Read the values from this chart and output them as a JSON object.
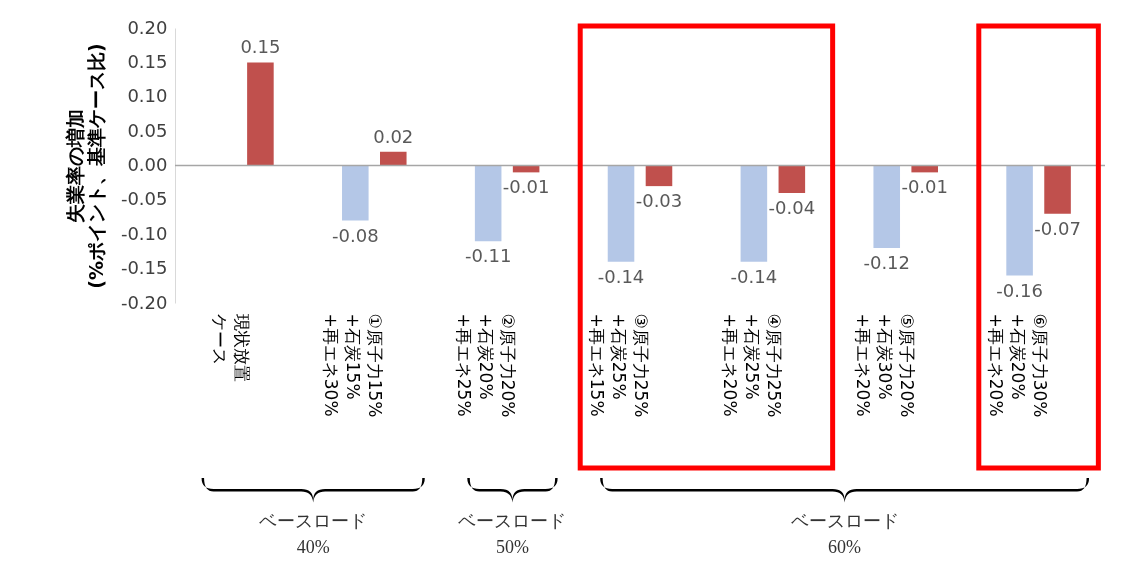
{
  "chart_data": {
    "type": "bar",
    "ylabel": "失業率の増加\n(%ポイント、基準ケース比)",
    "categories": [
      "現状放置ケース",
      "①原子力15%+石炭15%+再エネ30%",
      "②原子力20%+石炭20%+再エネ25%",
      "③原子力25%+石炭25%+再エネ15%",
      "④原子力25%+石炭25%+再エネ20%",
      "⑤原子力20%+石炭30%+再エネ20%",
      "⑥原子力30%+石炭20%+再エネ20%"
    ],
    "series": [
      {
        "color": "#b4c7e7",
        "values": [
          null,
          -0.08,
          -0.11,
          -0.14,
          -0.14,
          -0.12,
          -0.16
        ],
        "value_labels": [
          null,
          "-0.08",
          "-0.11",
          "-0.14",
          "-0.14",
          "-0.12",
          "-0.16"
        ]
      },
      {
        "color": "#c0504d",
        "values": [
          0.15,
          0.02,
          -0.01,
          -0.03,
          -0.04,
          -0.01,
          -0.07
        ],
        "value_labels": [
          "0.15",
          "0.02",
          "-0.01",
          "-0.03",
          "-0.04",
          "-0.01",
          "-0.07"
        ]
      }
    ],
    "ylim": [
      -0.2,
      0.2
    ],
    "yticks": [
      {
        "value": -0.2,
        "label": "-0.20"
      },
      {
        "value": -0.15,
        "label": "-0.15"
      },
      {
        "value": -0.1,
        "label": "-0.10"
      },
      {
        "value": -0.05,
        "label": "-0.05"
      },
      {
        "value": 0,
        "label": "0.00"
      },
      {
        "value": 0.05,
        "label": "0.05"
      },
      {
        "value": 0.1,
        "label": "0.10"
      },
      {
        "value": 0.15,
        "label": "0.15"
      },
      {
        "value": 0.2,
        "label": "0.20"
      }
    ],
    "ref_lines": [
      {
        "axis": "y",
        "value": 0,
        "color": "#a6a6a6"
      }
    ],
    "annotations": [
      "ベースロード\n40%",
      "ベースロード\n50%",
      "ベースロード\n60%"
    ]
  }
}
